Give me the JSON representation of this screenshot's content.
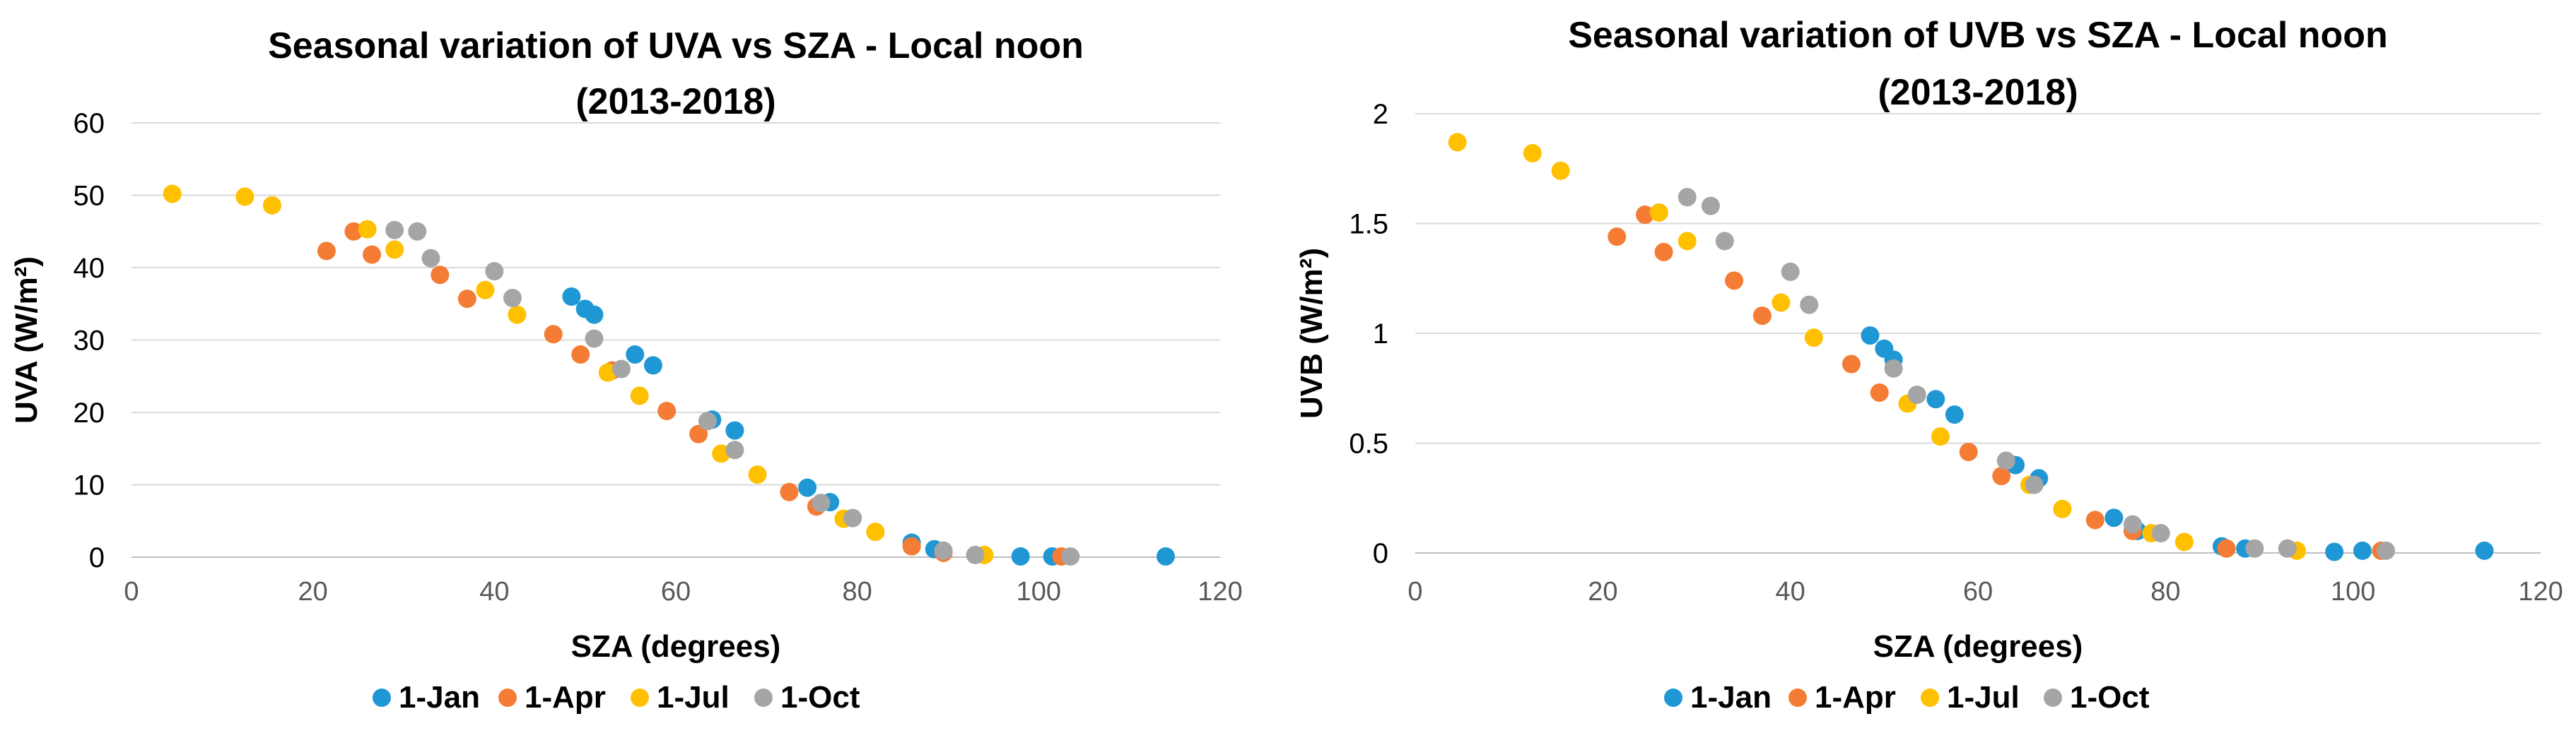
{
  "chart_data": [
    {
      "type": "scatter",
      "title": "Seasonal variation of UVA vs SZA - Local noon",
      "subtitle": "(2013-2018)",
      "xlabel": "SZA (degrees)",
      "ylabel": "UVA (W/m²)",
      "xlim": [
        0,
        120
      ],
      "ylim": [
        0,
        60
      ],
      "xticks": [
        "0",
        "20",
        "40",
        "60",
        "80",
        "100",
        "120"
      ],
      "yticks": [
        "0",
        "10",
        "20",
        "30",
        "40",
        "50",
        "60"
      ],
      "grid": "horizontal",
      "legend_position": "bottom",
      "series": [
        {
          "name": "1-Jan",
          "color": "#1F97D4",
          "points": [
            [
              48.5,
              36
            ],
            [
              50,
              34.3
            ],
            [
              51,
              33.5
            ],
            [
              55.5,
              28
            ],
            [
              57.5,
              26.5
            ],
            [
              64,
              19
            ],
            [
              66.5,
              17.5
            ],
            [
              74.5,
              9.6
            ],
            [
              77,
              7.6
            ],
            [
              86,
              2
            ],
            [
              88.5,
              1.1
            ],
            [
              98,
              0.1
            ],
            [
              101.5,
              0.1
            ],
            [
              114,
              0.1
            ]
          ]
        },
        {
          "name": "1-Apr",
          "color": "#F47C34",
          "points": [
            [
              21.5,
              42.3
            ],
            [
              24.5,
              45
            ],
            [
              26.5,
              41.8
            ],
            [
              34,
              39
            ],
            [
              37,
              35.7
            ],
            [
              46.5,
              30.8
            ],
            [
              49.5,
              28
            ],
            [
              53,
              25.8
            ],
            [
              59,
              20.2
            ],
            [
              62.5,
              17
            ],
            [
              72.5,
              9
            ],
            [
              75.5,
              7
            ],
            [
              86,
              1.5
            ],
            [
              89.5,
              0.6
            ],
            [
              102.5,
              0.1
            ]
          ]
        },
        {
          "name": "1-Jul",
          "color": "#FFC000",
          "points": [
            [
              4.5,
              50.2
            ],
            [
              12.5,
              49.8
            ],
            [
              15.5,
              48.6
            ],
            [
              26,
              45.3
            ],
            [
              29,
              42.5
            ],
            [
              39,
              36.9
            ],
            [
              42.5,
              33.5
            ],
            [
              52.5,
              25.5
            ],
            [
              56,
              22.3
            ],
            [
              65,
              14.3
            ],
            [
              69,
              11.4
            ],
            [
              78.5,
              5.3
            ],
            [
              82,
              3.5
            ],
            [
              94,
              0.3
            ]
          ]
        },
        {
          "name": "1-Oct",
          "color": "#A5A5A5",
          "points": [
            [
              29,
              45.2
            ],
            [
              31.5,
              45
            ],
            [
              33,
              41.3
            ],
            [
              40,
              39.5
            ],
            [
              42,
              35.8
            ],
            [
              51,
              30.2
            ],
            [
              54,
              26
            ],
            [
              63.5,
              18.8
            ],
            [
              66.5,
              14.8
            ],
            [
              76,
              7.5
            ],
            [
              79.5,
              5.4
            ],
            [
              89.5,
              0.9
            ],
            [
              93,
              0.3
            ],
            [
              103.5,
              0.1
            ]
          ]
        }
      ]
    },
    {
      "type": "scatter",
      "title": "Seasonal variation of UVB vs SZA - Local noon",
      "subtitle": "(2013-2018)",
      "xlabel": "SZA (degrees)",
      "ylabel": "UVB (W/m²)",
      "xlim": [
        0,
        120
      ],
      "ylim": [
        0,
        2
      ],
      "xticks": [
        "0",
        "20",
        "40",
        "60",
        "80",
        "100",
        "120"
      ],
      "yticks": [
        "0",
        "0.5",
        "1",
        "1.5",
        "2"
      ],
      "grid": "horizontal",
      "legend_position": "bottom",
      "series": [
        {
          "name": "1-Jan",
          "color": "#1F97D4",
          "points": [
            [
              48.5,
              0.99
            ],
            [
              50,
              0.93
            ],
            [
              51,
              0.88
            ],
            [
              55.5,
              0.7
            ],
            [
              57.5,
              0.63
            ],
            [
              64,
              0.4
            ],
            [
              66.5,
              0.34
            ],
            [
              74.5,
              0.16
            ],
            [
              77,
              0.1
            ],
            [
              86,
              0.03
            ],
            [
              88.5,
              0.02
            ],
            [
              98,
              0.005
            ],
            [
              101,
              0.01
            ],
            [
              114,
              0.01
            ]
          ]
        },
        {
          "name": "1-Apr",
          "color": "#F47C34",
          "points": [
            [
              21.5,
              1.44
            ],
            [
              24.5,
              1.54
            ],
            [
              26.5,
              1.37
            ],
            [
              34,
              1.24
            ],
            [
              37,
              1.08
            ],
            [
              46.5,
              0.86
            ],
            [
              49.5,
              0.73
            ],
            [
              59,
              0.46
            ],
            [
              62.5,
              0.35
            ],
            [
              72.5,
              0.15
            ],
            [
              76.5,
              0.1
            ],
            [
              86.5,
              0.02
            ],
            [
              103,
              0.01
            ]
          ]
        },
        {
          "name": "1-Jul",
          "color": "#FFC000",
          "points": [
            [
              4.5,
              1.87
            ],
            [
              12.5,
              1.82
            ],
            [
              15.5,
              1.74
            ],
            [
              26,
              1.55
            ],
            [
              29,
              1.42
            ],
            [
              39,
              1.14
            ],
            [
              42.5,
              0.98
            ],
            [
              52.5,
              0.68
            ],
            [
              56,
              0.53
            ],
            [
              65.5,
              0.31
            ],
            [
              69,
              0.2
            ],
            [
              78.5,
              0.09
            ],
            [
              82,
              0.05
            ],
            [
              94,
              0.01
            ]
          ]
        },
        {
          "name": "1-Oct",
          "color": "#A5A5A5",
          "points": [
            [
              29,
              1.62
            ],
            [
              31.5,
              1.58
            ],
            [
              33,
              1.42
            ],
            [
              40,
              1.28
            ],
            [
              42,
              1.13
            ],
            [
              51,
              0.84
            ],
            [
              53.5,
              0.72
            ],
            [
              63,
              0.42
            ],
            [
              66,
              0.31
            ],
            [
              76.5,
              0.13
            ],
            [
              79.5,
              0.09
            ],
            [
              89.5,
              0.02
            ],
            [
              93,
              0.02
            ],
            [
              103.5,
              0.01
            ]
          ]
        }
      ]
    }
  ]
}
